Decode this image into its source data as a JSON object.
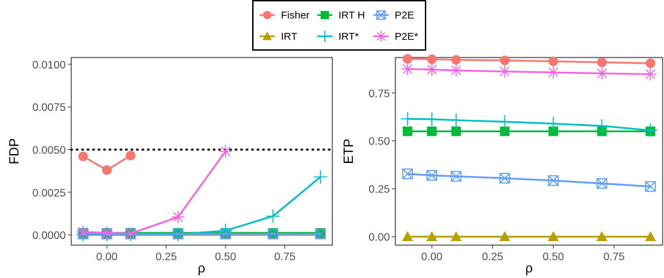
{
  "legend": {
    "items": [
      {
        "label": "Fisher",
        "color": "#F8766D",
        "marker": "circle"
      },
      {
        "label": "IRT H",
        "color": "#00BA38",
        "marker": "square"
      },
      {
        "label": "P2E",
        "color": "#619CFF",
        "marker": "square-x"
      },
      {
        "label": "IRT",
        "color": "#B79F00",
        "marker": "triangle"
      },
      {
        "label": "IRT*",
        "color": "#00BFC4",
        "marker": "plus"
      },
      {
        "label": "P2E*",
        "color": "#F564E3",
        "marker": "asterisk"
      }
    ]
  },
  "chart_data": [
    {
      "type": "line",
      "ylabel": "FDP",
      "xlabel": "ρ",
      "xlim": [
        -0.15,
        0.95
      ],
      "ylim": [
        -0.0006,
        0.0104
      ],
      "x_ticks": [
        0.0,
        0.25,
        0.5,
        0.75
      ],
      "x_tick_labels": [
        "0.00",
        "0.25",
        "0.50",
        "0.75"
      ],
      "y_ticks": [
        0.0,
        0.0025,
        0.005,
        0.0075,
        0.01
      ],
      "y_tick_labels": [
        "0.0000",
        "0.0025",
        "0.0050",
        "0.0075",
        "0.0100"
      ],
      "grid": false,
      "reference_line": {
        "y": 0.005,
        "style": "dotted",
        "color": "#000000"
      },
      "series": [
        {
          "name": "Fisher",
          "x": [
            -0.1,
            0.0,
            0.1
          ],
          "y": [
            0.0046,
            0.0038,
            0.00465
          ]
        },
        {
          "name": "IRT",
          "x": [
            -0.1,
            0.0,
            0.1,
            0.3,
            0.5,
            0.7,
            0.9
          ],
          "y": [
            0,
            0,
            0,
            0,
            0,
            0,
            0
          ]
        },
        {
          "name": "IRT H",
          "x": [
            -0.1,
            0.0,
            0.1,
            0.3,
            0.5,
            0.7,
            0.9
          ],
          "y": [
            0.00012,
            0.00012,
            0.00012,
            0.00012,
            0.00012,
            0.00012,
            0.00012
          ]
        },
        {
          "name": "IRT*",
          "x": [
            -0.1,
            0.0,
            0.1,
            0.3,
            0.5,
            0.7,
            0.9
          ],
          "y": [
            3e-05,
            3e-05,
            3e-05,
            3e-05,
            0.00025,
            0.0011,
            0.0034
          ]
        },
        {
          "name": "P2E",
          "x": [
            -0.1,
            0.0,
            0.1,
            0.3,
            0.5,
            0.7,
            0.9
          ],
          "y": [
            6e-05,
            6e-05,
            6e-05,
            6e-05,
            6e-05,
            6e-05,
            6e-05
          ]
        },
        {
          "name": "P2E*",
          "x": [
            -0.1,
            0.0,
            0.1,
            0.3,
            0.5
          ],
          "y": [
            0.00018,
            0.00012,
            8e-05,
            0.00105,
            0.0049
          ]
        }
      ]
    },
    {
      "type": "line",
      "ylabel": "ETP",
      "xlabel": "ρ",
      "xlim": [
        -0.15,
        0.95
      ],
      "ylim": [
        -0.044,
        0.935
      ],
      "x_ticks": [
        0.0,
        0.25,
        0.5,
        0.75
      ],
      "x_tick_labels": [
        "0.00",
        "0.25",
        "0.50",
        "0.75"
      ],
      "y_ticks": [
        0.0,
        0.25,
        0.5,
        0.75
      ],
      "y_tick_labels": [
        "0.00",
        "0.25",
        "0.50",
        "0.75"
      ],
      "grid": false,
      "series": [
        {
          "name": "Fisher",
          "x": [
            -0.1,
            0.0,
            0.1,
            0.3,
            0.5,
            0.7,
            0.9
          ],
          "y": [
            0.928,
            0.926,
            0.923,
            0.92,
            0.915,
            0.91,
            0.905
          ]
        },
        {
          "name": "IRT",
          "x": [
            -0.1,
            0.0,
            0.1,
            0.3,
            0.5,
            0.7,
            0.9
          ],
          "y": [
            0.0,
            0.0,
            0.0,
            0.0,
            0.0,
            0.0,
            0.0
          ]
        },
        {
          "name": "IRT H",
          "x": [
            -0.1,
            0.0,
            0.1,
            0.3,
            0.5,
            0.7,
            0.9
          ],
          "y": [
            0.55,
            0.55,
            0.55,
            0.55,
            0.55,
            0.55,
            0.55
          ]
        },
        {
          "name": "IRT*",
          "x": [
            -0.1,
            0.0,
            0.1,
            0.3,
            0.5,
            0.7,
            0.9
          ],
          "y": [
            0.615,
            0.613,
            0.608,
            0.6,
            0.59,
            0.578,
            0.555
          ]
        },
        {
          "name": "P2E",
          "x": [
            -0.1,
            0.0,
            0.1,
            0.3,
            0.5,
            0.7,
            0.9
          ],
          "y": [
            0.328,
            0.32,
            0.315,
            0.305,
            0.293,
            0.278,
            0.262
          ]
        },
        {
          "name": "P2E*",
          "x": [
            -0.1,
            0.0,
            0.1,
            0.3,
            0.5,
            0.7,
            0.9
          ],
          "y": [
            0.875,
            0.872,
            0.868,
            0.862,
            0.857,
            0.852,
            0.848
          ]
        }
      ]
    }
  ]
}
